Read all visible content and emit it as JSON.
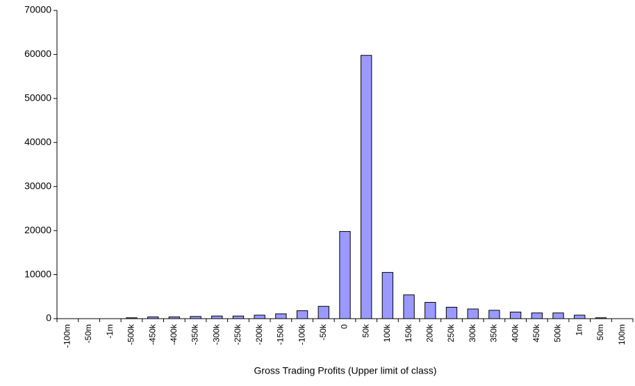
{
  "chart_data": {
    "type": "bar",
    "x_label": "Gross Trading Profits (Upper limit of class)",
    "categories": [
      "-100m",
      "-50m",
      "-1m",
      "-500k",
      "-450k",
      "-400k",
      "-350k",
      "-300k",
      "-250k",
      "-200k",
      "-150k",
      "-100k",
      "-50k",
      "0",
      "50k",
      "100k",
      "150k",
      "200k",
      "250k",
      "300k",
      "350k",
      "400k",
      "450k",
      "500k",
      "1m",
      "50m",
      "100m"
    ],
    "values": [
      0,
      0,
      0,
      200,
      400,
      400,
      500,
      600,
      600,
      800,
      1100,
      1800,
      2800,
      19800,
      59800,
      10500,
      5400,
      3700,
      2600,
      2200,
      1900,
      1500,
      1300,
      1300,
      800,
      200,
      0
    ],
    "color": "#9999ff",
    "ylim": [
      0,
      70000
    ],
    "yticks": [
      0,
      10000,
      20000,
      30000,
      40000,
      50000,
      60000,
      70000
    ],
    "grid": false
  }
}
